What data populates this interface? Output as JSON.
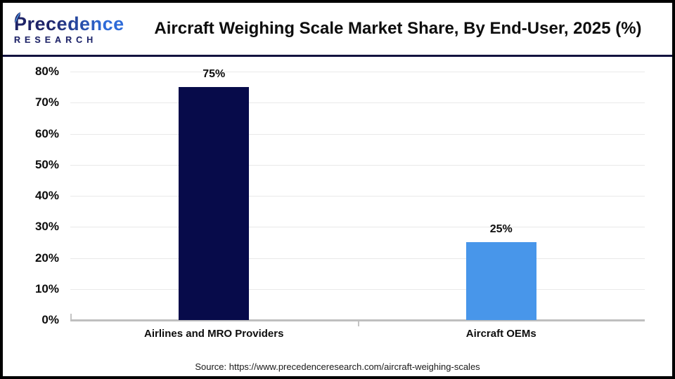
{
  "brand": {
    "name": "Precedence",
    "research": "RESEARCH",
    "color_dark": "#23286B",
    "color_light": "#2E6BD8"
  },
  "chart_data": {
    "type": "bar",
    "title": "Aircraft Weighing Scale Market Share, By End-User, 2025 (%)",
    "categories": [
      "Airlines and MRO Providers",
      "Aircraft OEMs"
    ],
    "values": [
      75,
      25
    ],
    "value_labels": [
      "75%",
      "25%"
    ],
    "bar_colors": [
      "#070B4A",
      "#4896EA"
    ],
    "xlabel": "",
    "ylabel": "",
    "ylim": [
      0,
      80
    ],
    "y_ticks": [
      "0%",
      "10%",
      "20%",
      "30%",
      "40%",
      "50%",
      "60%",
      "70%",
      "80%"
    ],
    "grid": true,
    "legend": "none"
  },
  "source": {
    "text": "Source: https://www.precedenceresearch.com/aircraft-weighing-scales"
  }
}
